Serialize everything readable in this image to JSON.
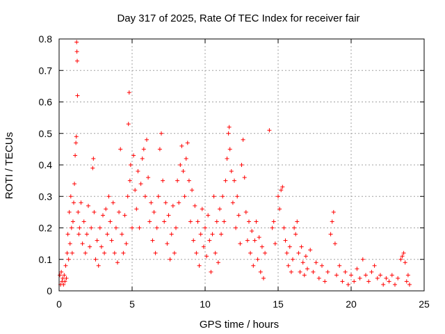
{
  "chart_data": {
    "type": "scatter",
    "title": "Day 317 of 2025, Rate Of TEC Index for receiver fair",
    "xlabel": "GPS time / hours",
    "ylabel": "ROTI / TECUs",
    "xlim": [
      0,
      25
    ],
    "ylim": [
      0,
      0.8
    ],
    "x_ticks": [
      0,
      5,
      10,
      15,
      20,
      25
    ],
    "y_ticks": [
      0,
      0.1,
      0.2,
      0.3,
      0.4,
      0.5,
      0.6,
      0.7,
      0.8
    ],
    "grid": true,
    "marker": "+",
    "series_color": "#ff0000",
    "points": [
      [
        0.05,
        0.05
      ],
      [
        0.1,
        0.02
      ],
      [
        0.15,
        0.06
      ],
      [
        0.2,
        0.03
      ],
      [
        0.25,
        0.04
      ],
      [
        0.3,
        0.02
      ],
      [
        0.35,
        0.05
      ],
      [
        0.4,
        0.03
      ],
      [
        0.45,
        0.08
      ],
      [
        0.5,
        0.04
      ],
      [
        0.55,
        0.12
      ],
      [
        0.6,
        0.18
      ],
      [
        0.65,
        0.1
      ],
      [
        0.7,
        0.25
      ],
      [
        0.75,
        0.15
      ],
      [
        0.8,
        0.3
      ],
      [
        0.85,
        0.2
      ],
      [
        0.9,
        0.12
      ],
      [
        0.95,
        0.22
      ],
      [
        1.0,
        0.28
      ],
      [
        1.05,
        0.34
      ],
      [
        1.1,
        0.43
      ],
      [
        1.15,
        0.47
      ],
      [
        1.18,
        0.49
      ],
      [
        1.2,
        0.79
      ],
      [
        1.22,
        0.76
      ],
      [
        1.24,
        0.73
      ],
      [
        1.26,
        0.62
      ],
      [
        1.3,
        0.25
      ],
      [
        1.35,
        0.18
      ],
      [
        1.4,
        0.2
      ],
      [
        1.5,
        0.28
      ],
      [
        1.6,
        0.15
      ],
      [
        1.7,
        0.22
      ],
      [
        1.8,
        0.12
      ],
      [
        1.9,
        0.18
      ],
      [
        2.0,
        0.27
      ],
      [
        2.1,
        0.14
      ],
      [
        2.2,
        0.2
      ],
      [
        2.3,
        0.39
      ],
      [
        2.35,
        0.42
      ],
      [
        2.4,
        0.25
      ],
      [
        2.5,
        0.1
      ],
      [
        2.6,
        0.16
      ],
      [
        2.7,
        0.08
      ],
      [
        2.8,
        0.2
      ],
      [
        2.9,
        0.14
      ],
      [
        3.0,
        0.24
      ],
      [
        3.1,
        0.12
      ],
      [
        3.2,
        0.26
      ],
      [
        3.3,
        0.18
      ],
      [
        3.4,
        0.3
      ],
      [
        3.5,
        0.22
      ],
      [
        3.6,
        0.16
      ],
      [
        3.7,
        0.28
      ],
      [
        3.8,
        0.12
      ],
      [
        3.9,
        0.2
      ],
      [
        4.0,
        0.09
      ],
      [
        4.1,
        0.25
      ],
      [
        4.2,
        0.45
      ],
      [
        4.3,
        0.18
      ],
      [
        4.4,
        0.12
      ],
      [
        4.5,
        0.24
      ],
      [
        4.6,
        0.15
      ],
      [
        4.7,
        0.3
      ],
      [
        4.75,
        0.53
      ],
      [
        4.8,
        0.63
      ],
      [
        4.85,
        0.35
      ],
      [
        4.9,
        0.4
      ],
      [
        5.0,
        0.2
      ],
      [
        5.1,
        0.43
      ],
      [
        5.2,
        0.32
      ],
      [
        5.3,
        0.26
      ],
      [
        5.4,
        0.38
      ],
      [
        5.5,
        0.2
      ],
      [
        5.6,
        0.34
      ],
      [
        5.7,
        0.42
      ],
      [
        5.8,
        0.45
      ],
      [
        5.9,
        0.3
      ],
      [
        6.0,
        0.48
      ],
      [
        6.1,
        0.36
      ],
      [
        6.2,
        0.22
      ],
      [
        6.3,
        0.28
      ],
      [
        6.4,
        0.16
      ],
      [
        6.5,
        0.25
      ],
      [
        6.6,
        0.12
      ],
      [
        6.7,
        0.2
      ],
      [
        6.8,
        0.3
      ],
      [
        6.9,
        0.45
      ],
      [
        7.0,
        0.5
      ],
      [
        7.1,
        0.35
      ],
      [
        7.2,
        0.22
      ],
      [
        7.3,
        0.28
      ],
      [
        7.4,
        0.15
      ],
      [
        7.5,
        0.24
      ],
      [
        7.6,
        0.1
      ],
      [
        7.7,
        0.18
      ],
      [
        7.8,
        0.27
      ],
      [
        7.9,
        0.12
      ],
      [
        8.0,
        0.2
      ],
      [
        8.1,
        0.35
      ],
      [
        8.2,
        0.28
      ],
      [
        8.3,
        0.4
      ],
      [
        8.4,
        0.46
      ],
      [
        8.5,
        0.38
      ],
      [
        8.6,
        0.3
      ],
      [
        8.7,
        0.42
      ],
      [
        8.8,
        0.47
      ],
      [
        8.9,
        0.35
      ],
      [
        9.0,
        0.22
      ],
      [
        9.1,
        0.32
      ],
      [
        9.2,
        0.16
      ],
      [
        9.3,
        0.27
      ],
      [
        9.4,
        0.12
      ],
      [
        9.5,
        0.22
      ],
      [
        9.6,
        0.08
      ],
      [
        9.7,
        0.18
      ],
      [
        9.8,
        0.26
      ],
      [
        9.9,
        0.14
      ],
      [
        10.0,
        0.2
      ],
      [
        10.1,
        0.11
      ],
      [
        10.2,
        0.24
      ],
      [
        10.3,
        0.16
      ],
      [
        10.4,
        0.06
      ],
      [
        10.5,
        0.18
      ],
      [
        10.6,
        0.3
      ],
      [
        10.7,
        0.12
      ],
      [
        10.8,
        0.22
      ],
      [
        10.9,
        0.09
      ],
      [
        11.0,
        0.26
      ],
      [
        11.1,
        0.18
      ],
      [
        11.2,
        0.3
      ],
      [
        11.3,
        0.22
      ],
      [
        11.4,
        0.35
      ],
      [
        11.5,
        0.42
      ],
      [
        11.6,
        0.5
      ],
      [
        11.65,
        0.52
      ],
      [
        11.7,
        0.45
      ],
      [
        11.8,
        0.38
      ],
      [
        11.9,
        0.28
      ],
      [
        12.0,
        0.35
      ],
      [
        12.1,
        0.2
      ],
      [
        12.2,
        0.3
      ],
      [
        12.3,
        0.24
      ],
      [
        12.4,
        0.15
      ],
      [
        12.5,
        0.4
      ],
      [
        12.6,
        0.48
      ],
      [
        12.7,
        0.36
      ],
      [
        12.8,
        0.25
      ],
      [
        12.9,
        0.16
      ],
      [
        13.0,
        0.22
      ],
      [
        13.1,
        0.12
      ],
      [
        13.2,
        0.19
      ],
      [
        13.3,
        0.08
      ],
      [
        13.4,
        0.16
      ],
      [
        13.5,
        0.22
      ],
      [
        13.6,
        0.1
      ],
      [
        13.7,
        0.17
      ],
      [
        13.8,
        0.06
      ],
      [
        13.9,
        0.14
      ],
      [
        14.0,
        0.04
      ],
      [
        14.1,
        0.12
      ],
      [
        14.4,
        0.51
      ],
      [
        14.6,
        0.2
      ],
      [
        14.7,
        0.22
      ],
      [
        14.8,
        0.15
      ],
      [
        15.0,
        0.3
      ],
      [
        15.1,
        0.26
      ],
      [
        15.2,
        0.32
      ],
      [
        15.3,
        0.33
      ],
      [
        15.4,
        0.2
      ],
      [
        15.5,
        0.16
      ],
      [
        15.6,
        0.12
      ],
      [
        15.7,
        0.08
      ],
      [
        15.8,
        0.14
      ],
      [
        15.9,
        0.06
      ],
      [
        16.0,
        0.1
      ],
      [
        16.1,
        0.2
      ],
      [
        16.2,
        0.18
      ],
      [
        16.3,
        0.22
      ],
      [
        16.4,
        0.12
      ],
      [
        16.5,
        0.06
      ],
      [
        16.6,
        0.14
      ],
      [
        16.7,
        0.09
      ],
      [
        16.8,
        0.05
      ],
      [
        16.9,
        0.11
      ],
      [
        17.0,
        0.07
      ],
      [
        17.2,
        0.13
      ],
      [
        17.4,
        0.06
      ],
      [
        17.6,
        0.09
      ],
      [
        17.8,
        0.04
      ],
      [
        18.0,
        0.08
      ],
      [
        18.2,
        0.03
      ],
      [
        18.4,
        0.06
      ],
      [
        18.6,
        0.18
      ],
      [
        18.7,
        0.22
      ],
      [
        18.8,
        0.25
      ],
      [
        18.9,
        0.15
      ],
      [
        19.0,
        0.05
      ],
      [
        19.2,
        0.08
      ],
      [
        19.4,
        0.03
      ],
      [
        19.6,
        0.06
      ],
      [
        19.8,
        0.02
      ],
      [
        20.0,
        0.05
      ],
      [
        20.2,
        0.03
      ],
      [
        20.4,
        0.07
      ],
      [
        20.6,
        0.04
      ],
      [
        20.8,
        0.1
      ],
      [
        21.0,
        0.05
      ],
      [
        21.2,
        0.03
      ],
      [
        21.4,
        0.06
      ],
      [
        21.6,
        0.08
      ],
      [
        21.8,
        0.04
      ],
      [
        22.0,
        0.05
      ],
      [
        22.2,
        0.02
      ],
      [
        22.4,
        0.04
      ],
      [
        22.6,
        0.03
      ],
      [
        22.8,
        0.05
      ],
      [
        23.0,
        0.02
      ],
      [
        23.2,
        0.04
      ],
      [
        23.4,
        0.1
      ],
      [
        23.5,
        0.11
      ],
      [
        23.6,
        0.12
      ],
      [
        23.7,
        0.09
      ],
      [
        23.8,
        0.03
      ],
      [
        23.9,
        0.05
      ],
      [
        24.0,
        0.02
      ]
    ]
  }
}
